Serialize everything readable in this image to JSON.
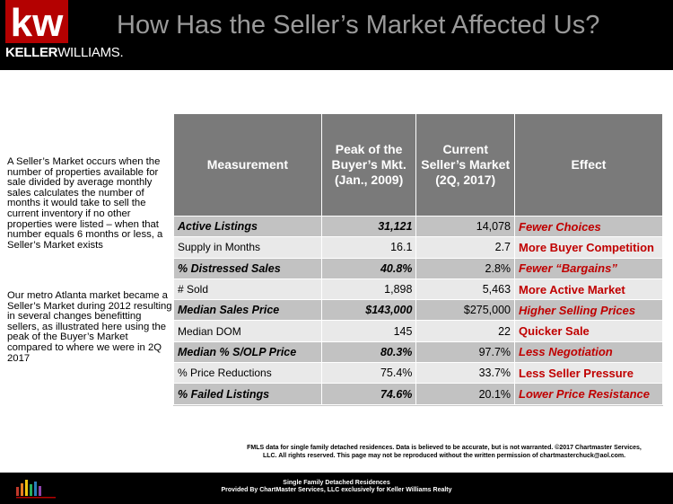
{
  "header": {
    "logo_kw": "kw",
    "logo_keller": "KELLER",
    "logo_williams": "WILLIAMS.",
    "title": "How Has the Seller’s Market Affected Us?"
  },
  "side": {
    "para1": "A Seller’s Market occurs when the number of properties available for sale divided by average monthly sales calculates the number of months it would take to sell the current inventory if no other properties were listed – when that number equals 6 months or less, a Seller’s Market exists",
    "para2": "Our metro Atlanta market became a Seller’s Market during 2012 resulting in several  changes benefitting sellers, as illustrated here using the peak of the Buyer’s Market compared to where we were in 2Q 2017"
  },
  "table": {
    "headers": {
      "measurement": "Measurement",
      "peak": "Peak of the Buyer’s Mkt. (Jan., 2009)",
      "current": "Current Seller’s Market (2Q, 2017)",
      "effect": "Effect"
    },
    "rows": [
      {
        "measure": "Active Listings",
        "peak": "31,121",
        "current": "14,078",
        "effect": "Fewer Choices"
      },
      {
        "measure": "Supply in Months",
        "peak": "16.1",
        "current": "2.7",
        "effect": "More Buyer Competition"
      },
      {
        "measure": "% Distressed Sales",
        "peak": "40.8%",
        "current": "2.8%",
        "effect": "Fewer “Bargains”"
      },
      {
        "measure": "# Sold",
        "peak": "1,898",
        "current": "5,463",
        "effect": "More Active Market"
      },
      {
        "measure": "Median Sales Price",
        "peak": "$143,000",
        "current": "$275,000",
        "effect": "Higher Selling Prices"
      },
      {
        "measure": "Median DOM",
        "peak": "145",
        "current": "22",
        "effect": "Quicker Sale"
      },
      {
        "measure": "Median % S/OLP Price",
        "peak": "80.3%",
        "current": "97.7%",
        "effect": "Less Negotiation"
      },
      {
        "measure": "% Price Reductions",
        "peak": "75.4%",
        "current": "33.7%",
        "effect": "Less Seller Pressure"
      },
      {
        "measure": "% Failed Listings",
        "peak": "74.6%",
        "current": "20.1%",
        "effect": "Lower Price Resistance"
      }
    ]
  },
  "note": {
    "line1": "FMLS data for single family detached residences.  Data is believed to be accurate, but is not warranted.   ©2017  Chartmaster Services,",
    "line2": "LLC.  All rights reserved. This page may not be reproduced without the written permission of chartmasterchuck@aol.com."
  },
  "footer": {
    "line1": "Single Family Detached Residences",
    "line2": "Provided By ChartMaster Services, LLC exclusively for Keller Williams Realty"
  },
  "colors": {
    "brand_red": "#b40101",
    "header_bg": "#000000",
    "title_gray": "#9a9a9a",
    "effect_red": "#c00000",
    "table_header_bg": "#7a7a7a"
  }
}
